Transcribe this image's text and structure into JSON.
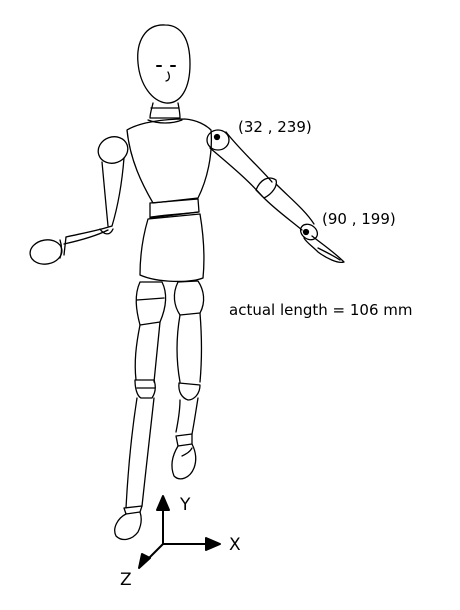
{
  "annotations": {
    "shoulder_point": "(32 , 239)",
    "wrist_point": "(90 , 199)",
    "actual_length": "actual length = 106 mm"
  },
  "axes": {
    "x_label": "X",
    "y_label": "Y",
    "z_label": "Z"
  },
  "colors": {
    "stroke": "#000000",
    "background": "#ffffff"
  }
}
